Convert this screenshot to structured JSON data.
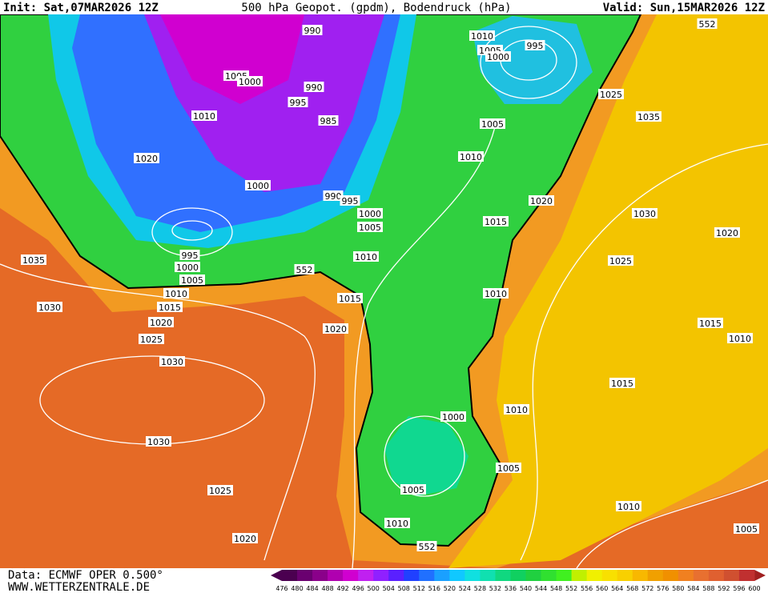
{
  "header": {
    "init": "Init: Sat,07MAR2026 12Z",
    "title": "500 hPa Geopot. (gpdm), Bodendruck (hPa)",
    "valid": "Valid: Sun,15MAR2026 12Z"
  },
  "footer": {
    "data": "Data: ECMWF OPER 0.500°",
    "site": "WWW.WETTERZENTRALE.DE"
  },
  "map": {
    "isobar_labels": [
      "990",
      "1005",
      "1000",
      "990",
      "995",
      "985",
      "1010",
      "1020",
      "1000",
      "990",
      "995",
      "1000",
      "1005",
      "995",
      "1000",
      "1005",
      "1010",
      "1015",
      "1020",
      "1025",
      "1030",
      "1030",
      "1025",
      "1020",
      "1035",
      "1030",
      "552",
      "1010",
      "1015",
      "1020",
      "1010",
      "1005",
      "1000",
      "995",
      "1005",
      "1010",
      "1015",
      "1010",
      "1020",
      "1025",
      "1035",
      "1030",
      "1025",
      "1020",
      "1015",
      "1010",
      "1015",
      "1010",
      "1000",
      "1005",
      "1005",
      "1010",
      "552",
      "1010",
      "1005",
      "552"
    ]
  },
  "legend": {
    "values": [
      476,
      480,
      484,
      488,
      492,
      496,
      500,
      504,
      508,
      512,
      516,
      520,
      524,
      528,
      532,
      536,
      540,
      544,
      548,
      552,
      556,
      560,
      564,
      568,
      572,
      576,
      580,
      584,
      588,
      592,
      596,
      600
    ],
    "colors": [
      "#4b0050",
      "#6a0070",
      "#8a008a",
      "#b000b0",
      "#d000d0",
      "#c020f0",
      "#9020ff",
      "#5a20ff",
      "#2040ff",
      "#2070ff",
      "#1aa0ff",
      "#10c8ff",
      "#10e0e0",
      "#10e0b0",
      "#10d880",
      "#10d060",
      "#20d040",
      "#30e030",
      "#40f020",
      "#c0f000",
      "#f0f000",
      "#f8e000",
      "#f8d000",
      "#f8b800",
      "#f0a000",
      "#f09000",
      "#f08020",
      "#e87030",
      "#e06030",
      "#d05030",
      "#c03030",
      "#a02020"
    ]
  }
}
